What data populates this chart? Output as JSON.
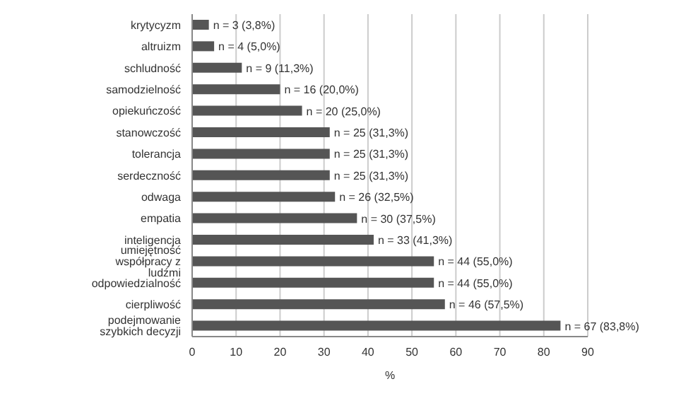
{
  "chart_data": {
    "type": "bar",
    "orientation": "horizontal",
    "xlabel": "%",
    "categories": [
      "krytycyzm",
      "altruizm",
      "schludność",
      "samodzielność",
      "opiekuńczość",
      "stanowczość",
      "tolerancja",
      "serdeczność",
      "odwaga",
      "empatia",
      "inteligencja",
      "umiejętność współpracy z ludźmi",
      "odpowiedzialność",
      "cierpliwość",
      "podejmowanie szybkich decyzji"
    ],
    "values": [
      3.8,
      5.0,
      11.3,
      20.0,
      25.0,
      31.3,
      31.3,
      31.3,
      32.5,
      37.5,
      41.3,
      55.0,
      55.0,
      57.5,
      83.8
    ],
    "value_labels": [
      "n = 3 (3,8%)",
      "n = 4 (5,0%)",
      "n = 9 (11,3%)",
      "n = 16 (20,0%)",
      "n = 20 (25,0%)",
      "n = 25 (31,3%)",
      "n = 25 (31,3%)",
      "n = 25 (31,3%)",
      "n = 26 (32,5%)",
      "n = 30 (37,5%)",
      "n = 33 (41,3%)",
      "n = 44 (55,0%)",
      "n = 44 (55,0%)",
      "n = 46 (57,5%)",
      "n = 67 (83,8%)"
    ],
    "color": "#555555",
    "xlim": [
      0,
      90
    ],
    "xticks": [
      0,
      10,
      20,
      30,
      40,
      50,
      60,
      70,
      80,
      90
    ],
    "grid": "x"
  }
}
